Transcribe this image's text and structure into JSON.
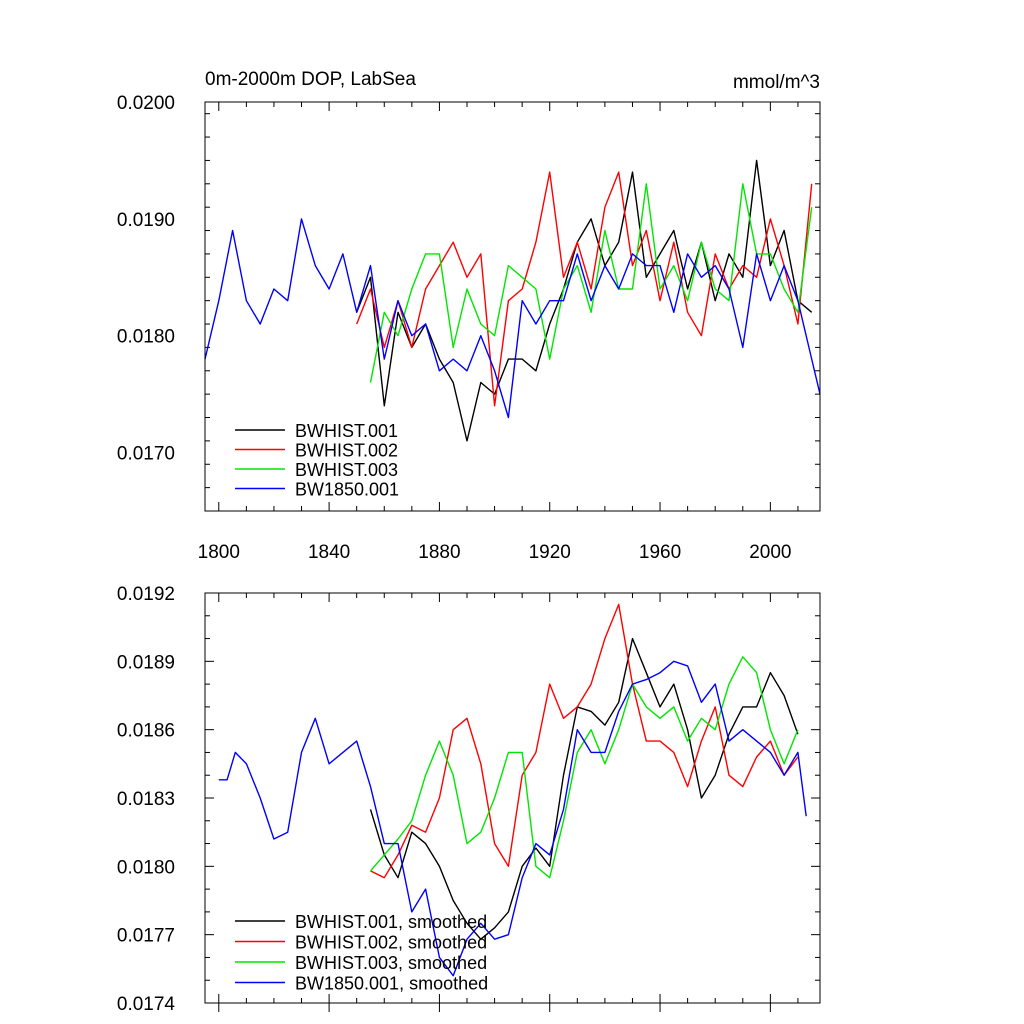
{
  "chart_data": [
    {
      "type": "line",
      "title": "0m-2000m DOP, LabSea",
      "units": "mmol/m^3",
      "xlim": [
        1795,
        2018
      ],
      "ylim": [
        0.0165,
        0.02
      ],
      "x_ticks": [
        "1800",
        "1840",
        "1880",
        "1920",
        "1960",
        "2000"
      ],
      "y_ticks": [
        "0.0170",
        "0.0180",
        "0.0190",
        "0.0200"
      ],
      "legend_position": "bottom-left",
      "series": [
        {
          "name": "BWHIST.001",
          "color": "#000000",
          "x": [
            1850,
            1855,
            1860,
            1865,
            1870,
            1875,
            1880,
            1885,
            1890,
            1895,
            1900,
            1905,
            1910,
            1915,
            1920,
            1925,
            1930,
            1935,
            1940,
            1945,
            1950,
            1955,
            1960,
            1965,
            1970,
            1975,
            1980,
            1985,
            1990,
            1995,
            2000,
            2005,
            2010,
            2015
          ],
          "y": [
            0.0182,
            0.0185,
            0.0174,
            0.0182,
            0.0179,
            0.0181,
            0.0178,
            0.0176,
            0.0171,
            0.0176,
            0.0175,
            0.0178,
            0.0178,
            0.0177,
            0.0181,
            0.0184,
            0.0188,
            0.019,
            0.0186,
            0.0188,
            0.0194,
            0.0185,
            0.0187,
            0.0189,
            0.0184,
            0.0188,
            0.0183,
            0.0187,
            0.0185,
            0.0195,
            0.0186,
            0.0189,
            0.0183,
            0.0182
          ]
        },
        {
          "name": "BWHIST.002",
          "color": "#ff0000",
          "x": [
            1850,
            1855,
            1860,
            1865,
            1870,
            1875,
            1880,
            1885,
            1890,
            1895,
            1900,
            1905,
            1910,
            1915,
            1920,
            1925,
            1930,
            1935,
            1940,
            1945,
            1950,
            1955,
            1960,
            1965,
            1970,
            1975,
            1980,
            1985,
            1990,
            1995,
            2000,
            2005,
            2010,
            2015
          ],
          "y": [
            0.0181,
            0.0184,
            0.0179,
            0.0183,
            0.0179,
            0.0184,
            0.0186,
            0.0188,
            0.0185,
            0.0187,
            0.0174,
            0.0183,
            0.0184,
            0.0188,
            0.0194,
            0.0185,
            0.0188,
            0.0184,
            0.0191,
            0.0194,
            0.0186,
            0.0189,
            0.0183,
            0.0188,
            0.0182,
            0.018,
            0.0187,
            0.0184,
            0.0186,
            0.0185,
            0.019,
            0.0186,
            0.0181,
            0.0193
          ]
        },
        {
          "name": "BWHIST.003",
          "color": "#00e600",
          "x": [
            1855,
            1860,
            1865,
            1870,
            1875,
            1880,
            1885,
            1890,
            1895,
            1900,
            1905,
            1910,
            1915,
            1920,
            1925,
            1930,
            1935,
            1940,
            1945,
            1950,
            1955,
            1960,
            1965,
            1970,
            1975,
            1980,
            1985,
            1990,
            1995,
            2000,
            2005,
            2010,
            2015
          ],
          "y": [
            0.0176,
            0.0182,
            0.018,
            0.0184,
            0.0187,
            0.0187,
            0.0179,
            0.0184,
            0.0181,
            0.018,
            0.0186,
            0.0185,
            0.0184,
            0.0178,
            0.0184,
            0.0186,
            0.0182,
            0.0189,
            0.0184,
            0.0184,
            0.0193,
            0.0184,
            0.0186,
            0.0183,
            0.0188,
            0.0184,
            0.0183,
            0.0193,
            0.0187,
            0.0187,
            0.0184,
            0.0182,
            0.0191
          ]
        },
        {
          "name": "BW1850.001",
          "color": "#0000ff",
          "x": [
            1795,
            1800,
            1805,
            1810,
            1815,
            1820,
            1825,
            1830,
            1835,
            1840,
            1845,
            1850,
            1855,
            1860,
            1865,
            1870,
            1875,
            1880,
            1885,
            1890,
            1895,
            1900,
            1905,
            1910,
            1915,
            1920,
            1925,
            1930,
            1935,
            1940,
            1945,
            1950,
            1955,
            1960,
            1965,
            1970,
            1975,
            1980,
            1985,
            1990,
            1995,
            2000,
            2005,
            2010,
            2015,
            2018
          ],
          "y": [
            0.0178,
            0.0183,
            0.0189,
            0.0183,
            0.0181,
            0.0184,
            0.0183,
            0.019,
            0.0186,
            0.0184,
            0.0187,
            0.0182,
            0.0186,
            0.0178,
            0.0183,
            0.018,
            0.0181,
            0.0177,
            0.0178,
            0.0177,
            0.018,
            0.0177,
            0.0173,
            0.0183,
            0.0181,
            0.0183,
            0.0183,
            0.0187,
            0.0183,
            0.0186,
            0.0184,
            0.0187,
            0.0186,
            0.0186,
            0.0182,
            0.0187,
            0.0185,
            0.0186,
            0.0184,
            0.0179,
            0.0187,
            0.0183,
            0.0186,
            0.0183,
            0.0178,
            0.0175
          ]
        }
      ]
    },
    {
      "type": "line",
      "xlim": [
        1795,
        2018
      ],
      "ylim": [
        0.0174,
        0.0192
      ],
      "x_ticks": [],
      "y_ticks": [
        "0.0174",
        "0.0177",
        "0.0180",
        "0.0183",
        "0.0186",
        "0.0189",
        "0.0192"
      ],
      "legend_position": "bottom-left",
      "series": [
        {
          "name": "BWHIST.001, smoothed",
          "color": "#000000",
          "x": [
            1855,
            1860,
            1865,
            1870,
            1875,
            1880,
            1885,
            1890,
            1895,
            1900,
            1905,
            1910,
            1915,
            1920,
            1925,
            1930,
            1935,
            1940,
            1945,
            1950,
            1955,
            1960,
            1965,
            1970,
            1975,
            1980,
            1985,
            1990,
            1995,
            2000,
            2005,
            2010
          ],
          "y": [
            0.01825,
            0.01805,
            0.01795,
            0.01815,
            0.0181,
            0.018,
            0.01785,
            0.01775,
            0.01768,
            0.01773,
            0.0178,
            0.018,
            0.01808,
            0.018,
            0.0184,
            0.0187,
            0.01868,
            0.01862,
            0.01872,
            0.019,
            0.01885,
            0.0187,
            0.0188,
            0.0186,
            0.0183,
            0.0184,
            0.01858,
            0.0187,
            0.0187,
            0.01885,
            0.01875,
            0.01858
          ]
        },
        {
          "name": "BWHIST.002, smoothed",
          "color": "#ff0000",
          "x": [
            1855,
            1860,
            1865,
            1870,
            1875,
            1880,
            1885,
            1890,
            1895,
            1900,
            1905,
            1910,
            1915,
            1920,
            1925,
            1930,
            1935,
            1940,
            1945,
            1950,
            1955,
            1960,
            1965,
            1970,
            1975,
            1980,
            1985,
            1990,
            1995,
            2000,
            2005,
            2010
          ],
          "y": [
            0.01798,
            0.01795,
            0.01805,
            0.01818,
            0.01815,
            0.0183,
            0.0186,
            0.01865,
            0.01845,
            0.0181,
            0.018,
            0.0184,
            0.0185,
            0.0188,
            0.01865,
            0.0187,
            0.0188,
            0.019,
            0.01915,
            0.0188,
            0.01855,
            0.01855,
            0.0185,
            0.01835,
            0.01855,
            0.0187,
            0.0184,
            0.01835,
            0.01848,
            0.01855,
            0.0184,
            0.01848
          ]
        },
        {
          "name": "BWHIST.003, smoothed",
          "color": "#00e600",
          "x": [
            1855,
            1860,
            1865,
            1870,
            1875,
            1880,
            1885,
            1890,
            1895,
            1900,
            1905,
            1910,
            1915,
            1920,
            1925,
            1930,
            1935,
            1940,
            1945,
            1950,
            1955,
            1960,
            1965,
            1970,
            1975,
            1980,
            1985,
            1990,
            1995,
            2000,
            2005,
            2010
          ],
          "y": [
            0.01798,
            0.01805,
            0.01812,
            0.0182,
            0.0184,
            0.01855,
            0.0184,
            0.0181,
            0.01815,
            0.0183,
            0.0185,
            0.0185,
            0.018,
            0.01795,
            0.0182,
            0.0185,
            0.0186,
            0.01845,
            0.0186,
            0.0188,
            0.0187,
            0.01865,
            0.0187,
            0.01855,
            0.01865,
            0.0186,
            0.0188,
            0.01892,
            0.01885,
            0.0186,
            0.01845,
            0.0186
          ]
        },
        {
          "name": "BW1850.001, smoothed",
          "color": "#0000ff",
          "x": [
            1800,
            1803,
            1806,
            1810,
            1815,
            1820,
            1825,
            1830,
            1835,
            1840,
            1845,
            1850,
            1855,
            1860,
            1865,
            1870,
            1875,
            1880,
            1885,
            1890,
            1895,
            1900,
            1905,
            1910,
            1915,
            1920,
            1925,
            1930,
            1935,
            1940,
            1945,
            1950,
            1955,
            1960,
            1965,
            1970,
            1975,
            1980,
            1985,
            1990,
            1995,
            2000,
            2005,
            2010,
            2013
          ],
          "y": [
            0.01838,
            0.01838,
            0.0185,
            0.01845,
            0.0183,
            0.01812,
            0.01815,
            0.0185,
            0.01865,
            0.01845,
            0.0185,
            0.01855,
            0.01835,
            0.0181,
            0.0181,
            0.0178,
            0.0179,
            0.0176,
            0.01752,
            0.01768,
            0.01775,
            0.01768,
            0.0177,
            0.01795,
            0.0181,
            0.01805,
            0.01825,
            0.0186,
            0.0185,
            0.0185,
            0.01868,
            0.0188,
            0.01882,
            0.01885,
            0.0189,
            0.01888,
            0.01872,
            0.0188,
            0.01855,
            0.0186,
            0.01855,
            0.0185,
            0.0184,
            0.0185,
            0.01822
          ]
        }
      ]
    }
  ]
}
